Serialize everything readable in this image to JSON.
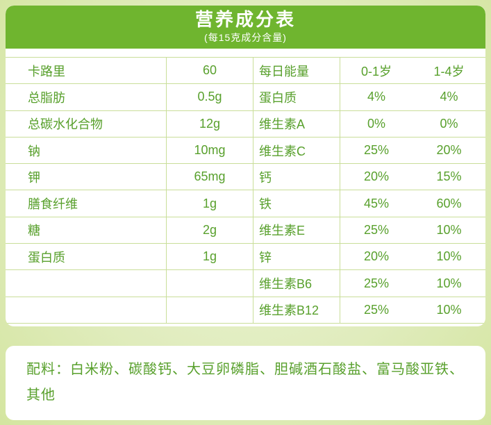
{
  "header": {
    "title": "营养成分表",
    "subtitle": "(每15克成分含量)"
  },
  "table": {
    "rows": [
      {
        "nutrient": "卡路里",
        "amount": "60",
        "daily_item": "每日能量",
        "age_0_1": "0-1岁",
        "age_1_4": "1-4岁"
      },
      {
        "nutrient": "总脂肪",
        "amount": "0.5g",
        "daily_item": "蛋白质",
        "age_0_1": "4%",
        "age_1_4": "4%"
      },
      {
        "nutrient": "总碳水化合物",
        "amount": "12g",
        "daily_item": "维生素A",
        "age_0_1": "0%",
        "age_1_4": "0%"
      },
      {
        "nutrient": "钠",
        "amount": "10mg",
        "daily_item": "维生素C",
        "age_0_1": "25%",
        "age_1_4": "20%"
      },
      {
        "nutrient": "钾",
        "amount": "65mg",
        "daily_item": "钙",
        "age_0_1": "20%",
        "age_1_4": "15%"
      },
      {
        "nutrient": "膳食纤维",
        "amount": "1g",
        "daily_item": "铁",
        "age_0_1": "45%",
        "age_1_4": "60%"
      },
      {
        "nutrient": "糖",
        "amount": "2g",
        "daily_item": "维生素E",
        "age_0_1": "25%",
        "age_1_4": "10%"
      },
      {
        "nutrient": "蛋白质",
        "amount": "1g",
        "daily_item": "锌",
        "age_0_1": "20%",
        "age_1_4": "10%"
      },
      {
        "nutrient": "",
        "amount": "",
        "daily_item": "维生素B6",
        "age_0_1": "25%",
        "age_1_4": "10%"
      },
      {
        "nutrient": "",
        "amount": "",
        "daily_item": "维生素B12",
        "age_0_1": "25%",
        "age_1_4": "10%"
      }
    ]
  },
  "ingredients": {
    "label": "配料：",
    "text": "白米粉、碳酸钙、大豆卵磷脂、胆碱酒石酸盐、富马酸亚铁、 其他"
  },
  "colors": {
    "header_green": "#6fb52f",
    "text_green": "#58a02c",
    "line_green": "#c9de99",
    "background_outer": "#d4e5a0",
    "background_inner": "#ecf4d6",
    "card_white": "#ffffff"
  }
}
